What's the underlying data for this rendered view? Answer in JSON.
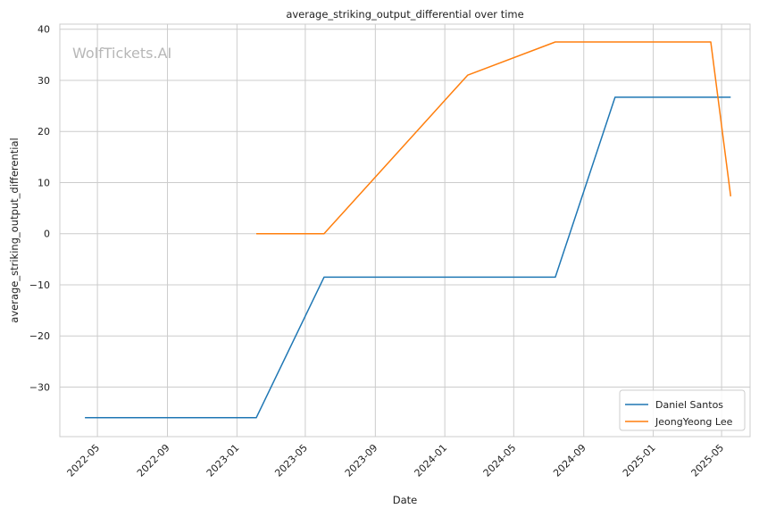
{
  "chart_data": {
    "type": "line",
    "title": "average_striking_output_differential over time",
    "xlabel": "Date",
    "ylabel": "average_striking_output_differential",
    "watermark": "WolfTickets.AI",
    "grid": true,
    "legend_position": "bottom-right",
    "xlim": [
      "2022-02-24",
      "2025-06-20"
    ],
    "ylim": [
      -39.7,
      41.0
    ],
    "x_ticks": [
      "2022-05-01",
      "2022-09-01",
      "2023-01-01",
      "2023-05-01",
      "2023-09-01",
      "2024-01-01",
      "2024-05-01",
      "2024-09-01",
      "2025-01-01",
      "2025-05-01"
    ],
    "x_tick_labels": [
      "2022-05",
      "2022-09",
      "2023-01",
      "2023-05",
      "2023-09",
      "2024-01",
      "2024-05",
      "2024-09",
      "2025-01",
      "2025-05"
    ],
    "y_ticks": [
      -30,
      -20,
      -10,
      0,
      10,
      20,
      30,
      40
    ],
    "y_tick_labels": [
      "−30",
      "−20",
      "−10",
      "0",
      "10",
      "20",
      "30",
      "40"
    ],
    "series": [
      {
        "name": "Daniel Santos",
        "color": "#1f77b4",
        "points": [
          {
            "x": "2022-04-09",
            "y": -36.0
          },
          {
            "x": "2023-02-04",
            "y": -36.0
          },
          {
            "x": "2023-06-03",
            "y": -8.5
          },
          {
            "x": "2024-07-13",
            "y": -8.5
          },
          {
            "x": "2024-10-26",
            "y": 26.7
          },
          {
            "x": "2025-05-17",
            "y": 26.7
          }
        ]
      },
      {
        "name": "JeongYeong Lee",
        "color": "#ff7f0e",
        "points": [
          {
            "x": "2023-02-04",
            "y": 0.0
          },
          {
            "x": "2023-06-03",
            "y": 0.0
          },
          {
            "x": "2024-02-10",
            "y": 31.0
          },
          {
            "x": "2024-07-13",
            "y": 37.5
          },
          {
            "x": "2025-04-12",
            "y": 37.5
          },
          {
            "x": "2025-05-17",
            "y": 7.3
          }
        ]
      }
    ]
  }
}
